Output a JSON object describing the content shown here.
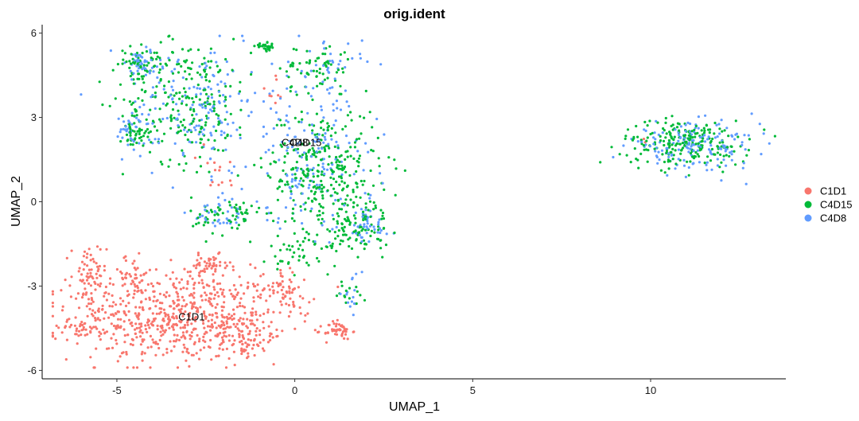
{
  "chart_data": {
    "type": "scatter",
    "title": "orig.ident",
    "xlabel": "UMAP_1",
    "ylabel": "UMAP_2",
    "xlim": [
      -7.1,
      13.8
    ],
    "ylim": [
      -6.3,
      6.3
    ],
    "x_ticks": [
      -5,
      0,
      5,
      10
    ],
    "y_ticks": [
      -6,
      -3,
      0,
      3,
      6
    ],
    "grid": false,
    "legend_position": "right",
    "series": [
      {
        "name": "C1D1",
        "color": "#F8766D",
        "clusters": [
          {
            "cx": -3.3,
            "cy": -4.1,
            "sx": 1.5,
            "sy": 0.8,
            "n": 650
          },
          {
            "cx": -5.8,
            "cy": -2.8,
            "sx": 0.25,
            "sy": 0.7,
            "n": 70
          },
          {
            "cx": -4.6,
            "cy": -2.6,
            "sx": 0.3,
            "sy": 0.35,
            "n": 40
          },
          {
            "cx": -2.4,
            "cy": -2.3,
            "sx": 0.3,
            "sy": 0.2,
            "n": 50
          },
          {
            "cx": -6.0,
            "cy": -4.6,
            "sx": 0.25,
            "sy": 0.12,
            "n": 20
          },
          {
            "cx": -0.4,
            "cy": -3.0,
            "sx": 0.3,
            "sy": 0.35,
            "n": 45
          },
          {
            "cx": -1.4,
            "cy": -4.7,
            "sx": 0.4,
            "sy": 0.5,
            "n": 80
          },
          {
            "cx": 1.2,
            "cy": -4.6,
            "sx": 0.2,
            "sy": 0.15,
            "n": 45
          },
          {
            "cx": 0.2,
            "cy": -3.5,
            "sx": 0.25,
            "sy": 0.3,
            "n": 12
          },
          {
            "cx": -2.2,
            "cy": 1.0,
            "sx": 0.3,
            "sy": 0.5,
            "n": 14
          },
          {
            "cx": -0.6,
            "cy": 3.8,
            "sx": 0.2,
            "sy": 0.5,
            "n": 8
          },
          {
            "cx": 9.8,
            "cy": 2.1,
            "sx": 0.1,
            "sy": 0.1,
            "n": 2
          }
        ]
      },
      {
        "name": "C4D15",
        "color": "#00BA38",
        "clusters": [
          {
            "cx": -3.0,
            "cy": 3.6,
            "sx": 0.9,
            "sy": 1.1,
            "n": 230
          },
          {
            "cx": -4.2,
            "cy": 4.9,
            "sx": 0.4,
            "sy": 0.3,
            "n": 60
          },
          {
            "cx": -4.5,
            "cy": 2.5,
            "sx": 0.2,
            "sy": 0.3,
            "n": 40
          },
          {
            "cx": -0.8,
            "cy": 5.5,
            "sx": 0.15,
            "sy": 0.07,
            "n": 30
          },
          {
            "cx": 0.6,
            "cy": 4.8,
            "sx": 0.5,
            "sy": 0.4,
            "n": 60
          },
          {
            "cx": 0.8,
            "cy": 1.2,
            "sx": 0.8,
            "sy": 1.1,
            "n": 300
          },
          {
            "cx": 1.7,
            "cy": -0.8,
            "sx": 0.5,
            "sy": 0.5,
            "n": 100
          },
          {
            "cx": -1.9,
            "cy": -0.5,
            "sx": 0.5,
            "sy": 0.35,
            "n": 60
          },
          {
            "cx": 0.3,
            "cy": -1.8,
            "sx": 0.5,
            "sy": 0.4,
            "n": 50
          },
          {
            "cx": 1.5,
            "cy": -3.2,
            "sx": 0.2,
            "sy": 0.4,
            "n": 15
          },
          {
            "cx": 11.0,
            "cy": 2.1,
            "sx": 0.9,
            "sy": 0.4,
            "n": 220
          }
        ]
      },
      {
        "name": "C4D8",
        "color": "#619CFF",
        "clusters": [
          {
            "cx": -2.8,
            "cy": 3.3,
            "sx": 1.0,
            "sy": 1.1,
            "n": 170
          },
          {
            "cx": -4.3,
            "cy": 4.9,
            "sx": 0.4,
            "sy": 0.3,
            "n": 45
          },
          {
            "cx": -4.6,
            "cy": 2.6,
            "sx": 0.2,
            "sy": 0.3,
            "n": 30
          },
          {
            "cx": 0.9,
            "cy": 4.8,
            "sx": 0.5,
            "sy": 0.5,
            "n": 40
          },
          {
            "cx": 0.5,
            "cy": 1.5,
            "sx": 0.9,
            "sy": 1.2,
            "n": 160
          },
          {
            "cx": 2.0,
            "cy": -0.9,
            "sx": 0.35,
            "sy": 0.4,
            "n": 45
          },
          {
            "cx": -2.0,
            "cy": -0.4,
            "sx": 0.5,
            "sy": 0.35,
            "n": 40
          },
          {
            "cx": 1.6,
            "cy": -3.4,
            "sx": 0.15,
            "sy": 0.4,
            "n": 15
          },
          {
            "cx": 11.2,
            "cy": 2.0,
            "sx": 0.9,
            "sy": 0.4,
            "n": 160
          }
        ]
      }
    ],
    "annotations": [
      {
        "text": "C4D8",
        "x": 0.0,
        "y": 2.1
      },
      {
        "text": "C4D15",
        "x": 0.3,
        "y": 2.1
      },
      {
        "text": "C1D1",
        "x": -2.9,
        "y": -4.1
      }
    ]
  }
}
